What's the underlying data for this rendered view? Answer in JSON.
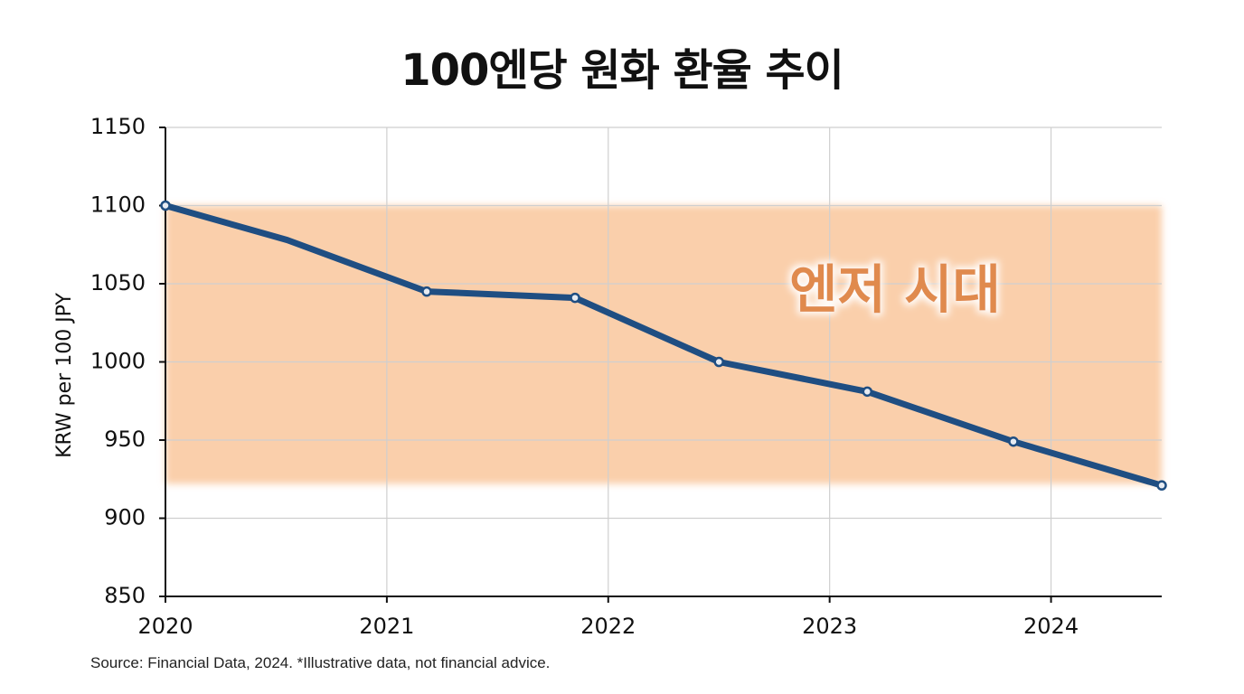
{
  "chart_data": {
    "type": "line",
    "title": "100엔당 원화 환율 추이",
    "ylabel": "KRW per 100 JPY",
    "xlabel": "",
    "xlim": [
      2020,
      2024.5
    ],
    "ylim": [
      850,
      1150
    ],
    "x_ticks": [
      2020,
      2021,
      2022,
      2023,
      2024
    ],
    "y_ticks": [
      850,
      900,
      950,
      1000,
      1050,
      1100,
      1150
    ],
    "grid": true,
    "series": [
      {
        "color": "#1f4e82",
        "points": [
          {
            "x": 2020.0,
            "y": 1100
          },
          {
            "x": 2020.55,
            "y": 1078
          },
          {
            "x": 2021.18,
            "y": 1045
          },
          {
            "x": 2021.85,
            "y": 1041
          },
          {
            "x": 2022.5,
            "y": 1000
          },
          {
            "x": 2023.17,
            "y": 981
          },
          {
            "x": 2023.83,
            "y": 949
          },
          {
            "x": 2024.5,
            "y": 921
          }
        ],
        "markers": [
          0,
          2,
          3,
          4,
          5,
          6,
          7
        ]
      }
    ],
    "annotations": [
      {
        "type": "band",
        "label": "엔저 시대",
        "y_from": 922,
        "y_to": 1100,
        "color": "#f9c79c"
      }
    ],
    "footnote": "Source: Financial Data, 2024. *Illustrative data, not financial advice."
  }
}
